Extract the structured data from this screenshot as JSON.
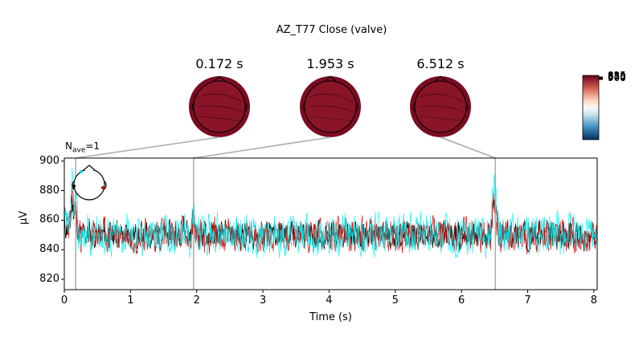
{
  "chart_data": {
    "type": "line",
    "title": "AZ_T77 Close (valve)",
    "annotation": "N",
    "annotation_sub": "ave",
    "annotation_suffix": "=1",
    "xlabel": "Time (s)",
    "ylabel": "µV",
    "xlim": [
      0,
      8.05
    ],
    "ylim": [
      813,
      902
    ],
    "xticks": [
      0,
      1,
      2,
      3,
      4,
      5,
      6,
      7,
      8
    ],
    "yticks": [
      820,
      840,
      860,
      880,
      900
    ],
    "baseline": 850,
    "topomap_times": [
      "0.172 s",
      "1.953 s",
      "6.512 s"
    ],
    "topomap_time_values": [
      0.172,
      1.953,
      6.512
    ],
    "colorbar_tick_labels": [
      "825",
      "850",
      "875",
      "900"
    ],
    "series": [
      {
        "color": "#000000",
        "amplitude": 8,
        "seed": 11
      },
      {
        "color": "#cc0000",
        "amplitude": 10,
        "seed": 23
      },
      {
        "color": "#00eeee",
        "amplitude": 12,
        "seed": 37
      }
    ],
    "peaks": [
      {
        "t": 0.12,
        "v": 884
      },
      {
        "t": 0.17,
        "v": 878
      },
      {
        "t": 1.79,
        "v": 866
      },
      {
        "t": 1.95,
        "v": 870
      },
      {
        "t": 6.48,
        "v": 892
      },
      {
        "t": 6.52,
        "v": 876
      }
    ],
    "grid": false
  },
  "colors": {
    "axis": "#000000",
    "guide": "#aaaaaa",
    "head_fill": "#7a0c22",
    "head_ring": "#8a1428"
  }
}
